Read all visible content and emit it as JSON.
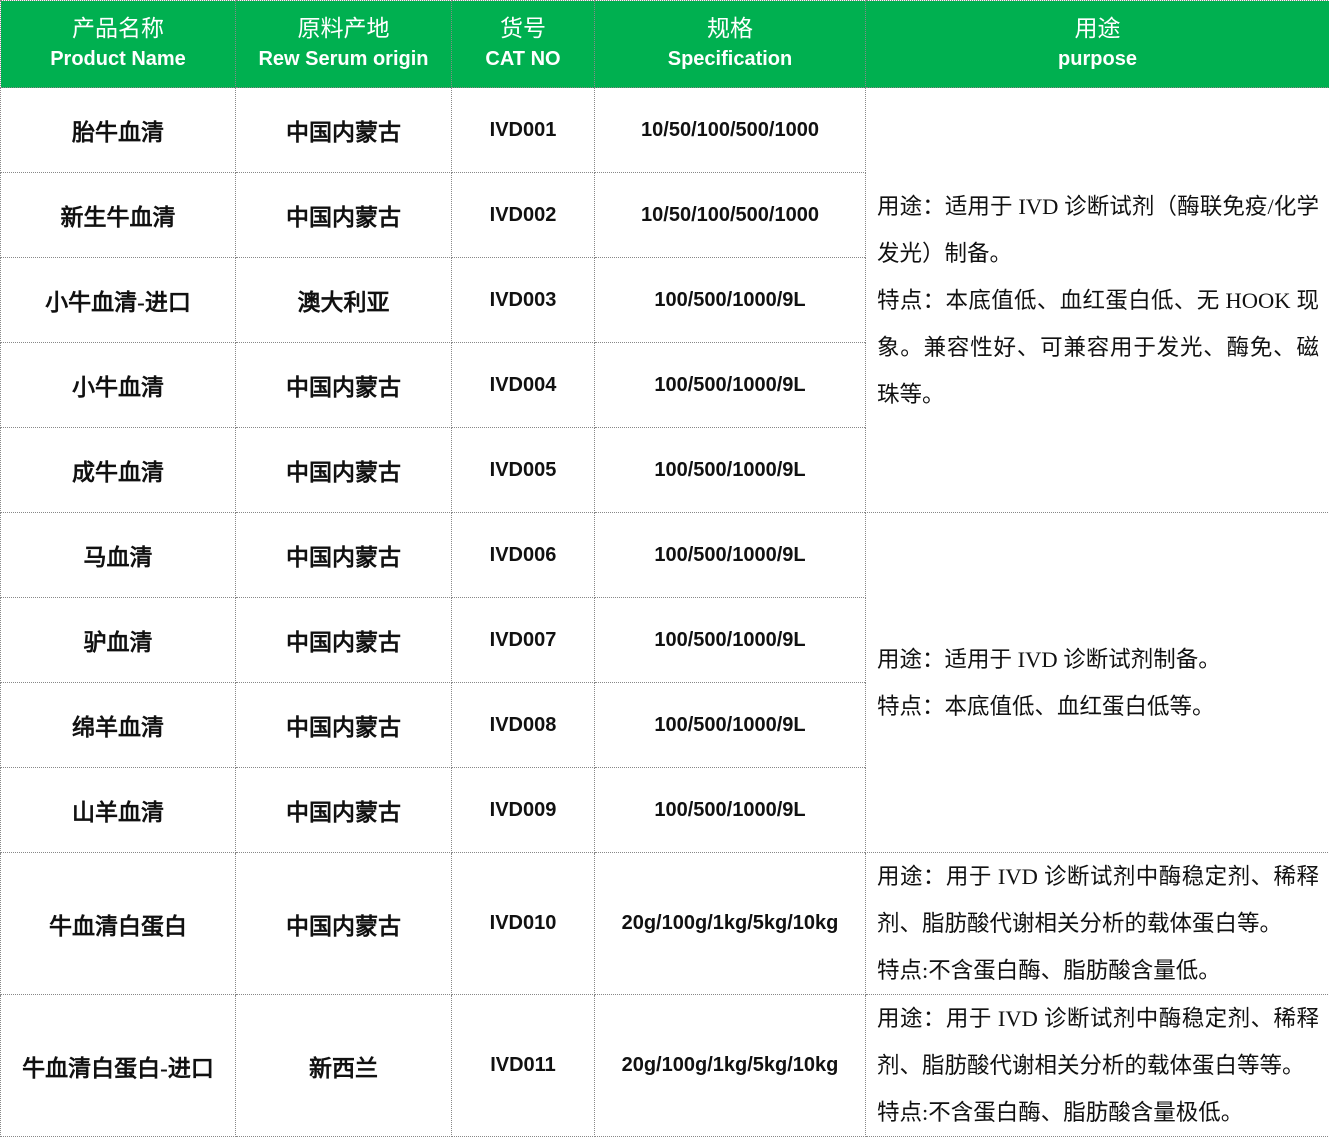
{
  "colors": {
    "header_bg": "#00B050",
    "header_text": "#FFFFFF"
  },
  "header": [
    {
      "zh": "产品名称",
      "en": "Product Name"
    },
    {
      "zh": "原料产地",
      "en": "Rew Serum origin"
    },
    {
      "zh": "货号",
      "en": "CAT NO"
    },
    {
      "zh": "规格",
      "en": "Specification"
    },
    {
      "zh": "用途",
      "en": "purpose"
    }
  ],
  "rows": [
    {
      "name": "胎牛血清",
      "origin": "中国内蒙古",
      "cat": "IVD001",
      "spec": "10/50/100/500/1000"
    },
    {
      "name": "新生牛血清",
      "origin": "中国内蒙古",
      "cat": "IVD002",
      "spec": "10/50/100/500/1000"
    },
    {
      "name": "小牛血清-进口",
      "origin": "澳大利亚",
      "cat": "IVD003",
      "spec": "100/500/1000/9L"
    },
    {
      "name": "小牛血清",
      "origin": "中国内蒙古",
      "cat": "IVD004",
      "spec": "100/500/1000/9L"
    },
    {
      "name": "成牛血清",
      "origin": "中国内蒙古",
      "cat": "IVD005",
      "spec": "100/500/1000/9L"
    },
    {
      "name": "马血清",
      "origin": "中国内蒙古",
      "cat": "IVD006",
      "spec": "100/500/1000/9L"
    },
    {
      "name": "驴血清",
      "origin": "中国内蒙古",
      "cat": "IVD007",
      "spec": "100/500/1000/9L"
    },
    {
      "name": "绵羊血清",
      "origin": "中国内蒙古",
      "cat": "IVD008",
      "spec": "100/500/1000/9L"
    },
    {
      "name": "山羊血清",
      "origin": "中国内蒙古",
      "cat": "IVD009",
      "spec": "100/500/1000/9L"
    },
    {
      "name": "牛血清白蛋白",
      "origin": "中国内蒙古",
      "cat": "IVD010",
      "spec": "20g/100g/1kg/5kg/10kg"
    },
    {
      "name": "牛血清白蛋白-进口",
      "origin": "新西兰",
      "cat": "IVD011",
      "spec": "20g/100g/1kg/5kg/10kg"
    }
  ],
  "purposes": [
    {
      "use": "用途：适用于 IVD 诊断试剂（酶联免疫/化学发光）制备。",
      "feature": "特点：本底值低、血红蛋白低、无 HOOK 现象。兼容性好、可兼容用于发光、酶免、磁珠等。"
    },
    {
      "use": "用途：适用于 IVD 诊断试剂制备。",
      "feature": "特点：本底值低、血红蛋白低等。"
    },
    {
      "use": "用途：用于 IVD 诊断试剂中酶稳定剂、稀释剂、脂肪酸代谢相关分析的载体蛋白等。",
      "feature": "特点:不含蛋白酶、脂肪酸含量低。"
    },
    {
      "use": "用途：用于 IVD 诊断试剂中酶稳定剂、稀释剂、脂肪酸代谢相关分析的载体蛋白等等。",
      "feature": "特点:不含蛋白酶、脂肪酸含量极低。"
    }
  ]
}
